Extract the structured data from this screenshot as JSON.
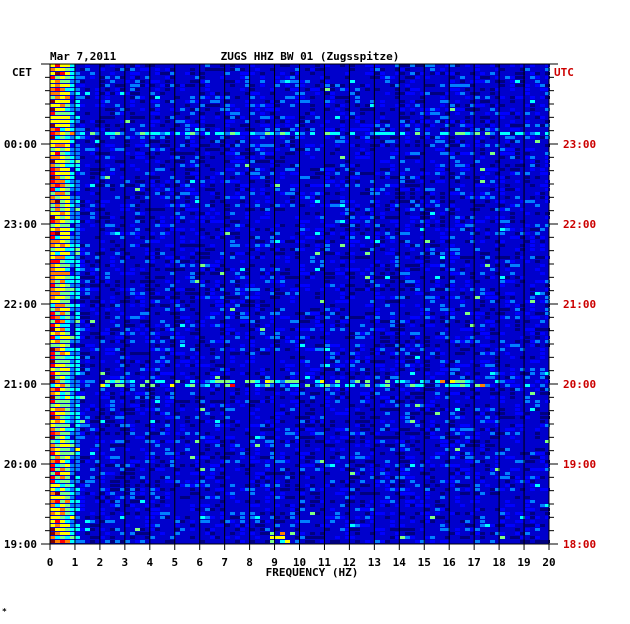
{
  "chart_data": {
    "type": "heatmap",
    "date": "Mar 7,2011",
    "title": "ZUGS HHZ BW 01 (Zugsspitze)",
    "xlabel": "FREQUENCY (HZ)",
    "xlim": [
      0,
      20
    ],
    "x_ticks": [
      "0",
      "1",
      "2",
      "3",
      "4",
      "5",
      "6",
      "7",
      "8",
      "9",
      "10",
      "11",
      "12",
      "13",
      "14",
      "15",
      "16",
      "17",
      "18",
      "19",
      "20"
    ],
    "left_axis_label": "CET",
    "right_axis_label": "UTC",
    "left_ticks": [
      "00:00",
      "23:00",
      "22:00",
      "21:00",
      "20:00",
      "19:00"
    ],
    "right_ticks": [
      "23:00",
      "22:00",
      "21:00",
      "20:00",
      "19:00",
      "18:00"
    ],
    "left_tick_color": "#000000",
    "right_tick_color": "#cc0000",
    "features": [
      {
        "label": "strong low-frequency energy",
        "freq_range_hz": [
          0,
          0.8
        ]
      },
      {
        "label": "horizontal band near 23:00 UTC",
        "freq_range_hz": [
          0,
          20
        ]
      },
      {
        "label": "horizontal band near 20:00 UTC",
        "freq_range_hz": [
          2,
          18
        ]
      },
      {
        "label": "burst near 18:00 UTC",
        "freq_range_hz": [
          8.8,
          10
        ]
      }
    ],
    "colormap": [
      "#00007f",
      "#0000ff",
      "#0080ff",
      "#00ffff",
      "#80ff80",
      "#ffff00",
      "#ff8000",
      "#ff0000",
      "#7f0000"
    ],
    "grid": true
  },
  "footer_mark": "*"
}
